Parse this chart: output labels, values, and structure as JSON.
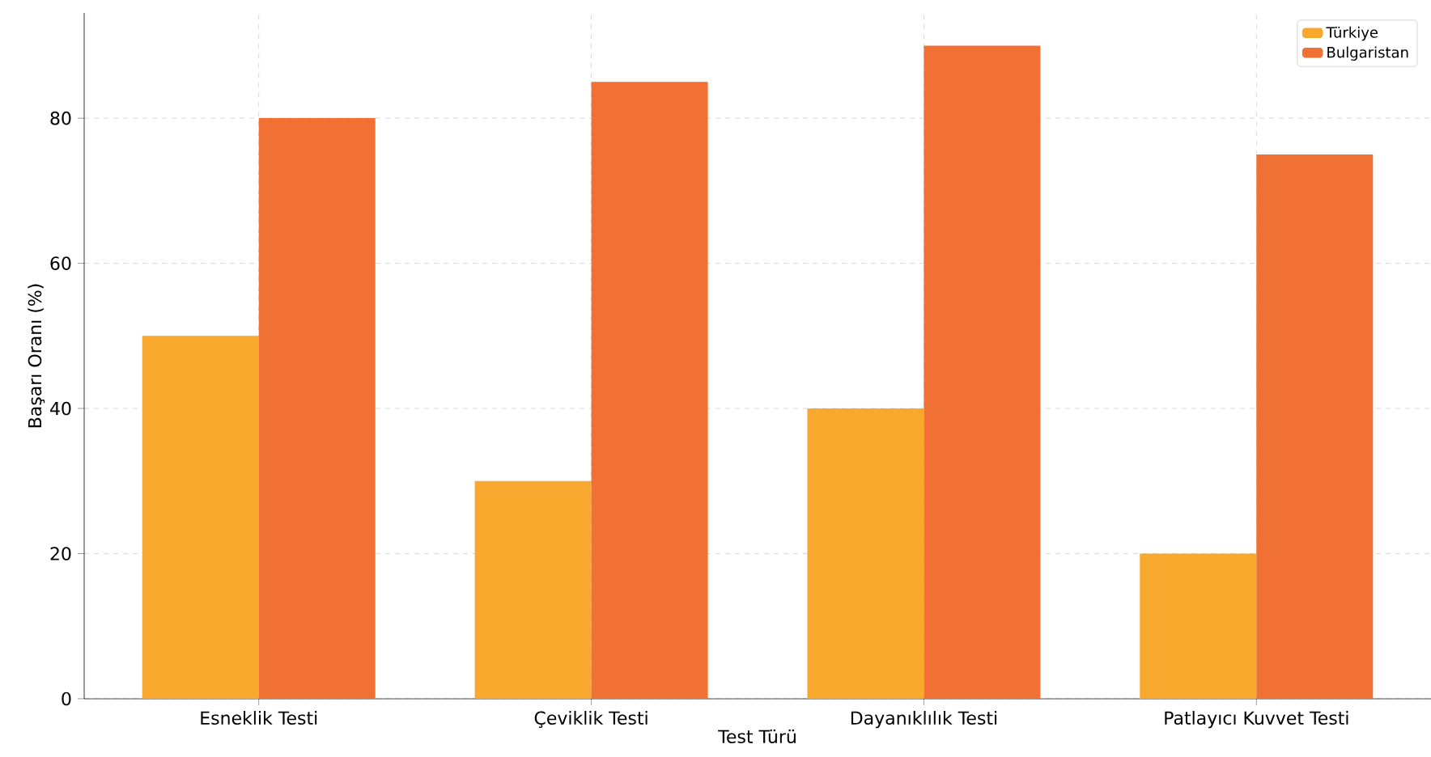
{
  "chart_data": {
    "type": "bar",
    "xlabel": "Test Türü",
    "ylabel": "Başarı Oranı (%)",
    "categories": [
      "Esneklik Testi",
      "Çeviklik Testi",
      "Dayanıklılık Testi",
      "Patlayıcı Kuvvet Testi"
    ],
    "series": [
      {
        "name": "Türkiye",
        "color": "#f7a82d",
        "values": [
          50,
          30,
          40,
          20
        ]
      },
      {
        "name": "Bulgaristan",
        "color": "#f07133",
        "values": [
          80,
          85,
          90,
          75
        ]
      }
    ],
    "ylim": [
      0,
      94.5
    ],
    "yticks": [
      0,
      20,
      40,
      60,
      80
    ],
    "grid": true,
    "legend": "top right"
  }
}
